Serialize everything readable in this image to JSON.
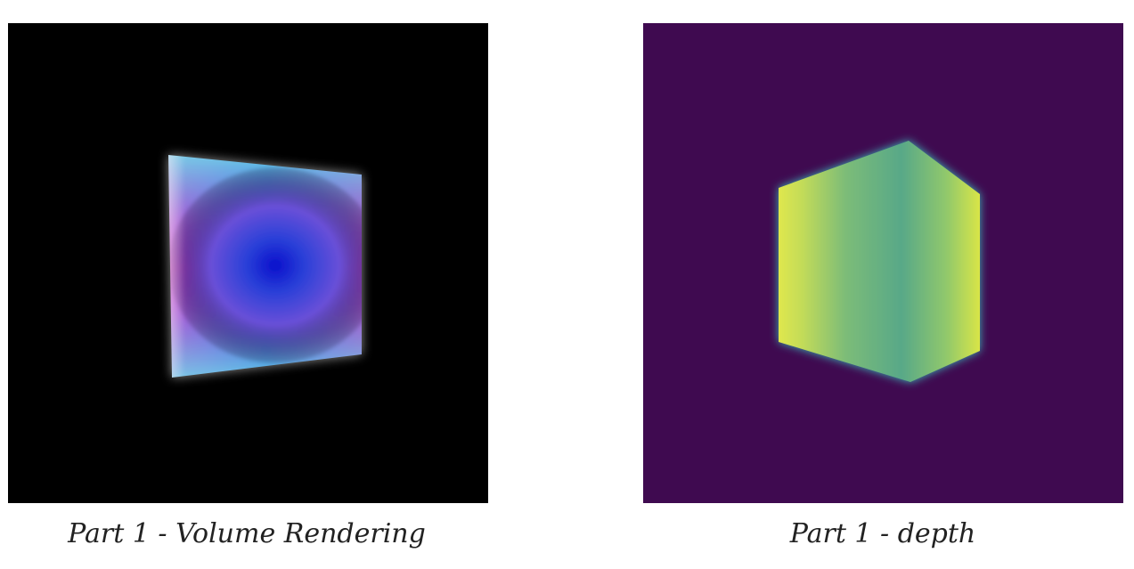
{
  "figures": [
    {
      "caption": "Part 1 - Volume Rendering",
      "background": "#000000",
      "colors": {
        "center": "#1010d0",
        "magenta": "#c030c8",
        "cyan": "#60d8e0",
        "edge_glow": "#ffffff"
      }
    },
    {
      "caption": "Part 1 - depth",
      "background": "#3f0a50",
      "colors": {
        "left_face": "#e4e84a",
        "middle": "#58a888",
        "right_face": "#e8ec40",
        "edge": "#3ab8b8"
      }
    }
  ]
}
